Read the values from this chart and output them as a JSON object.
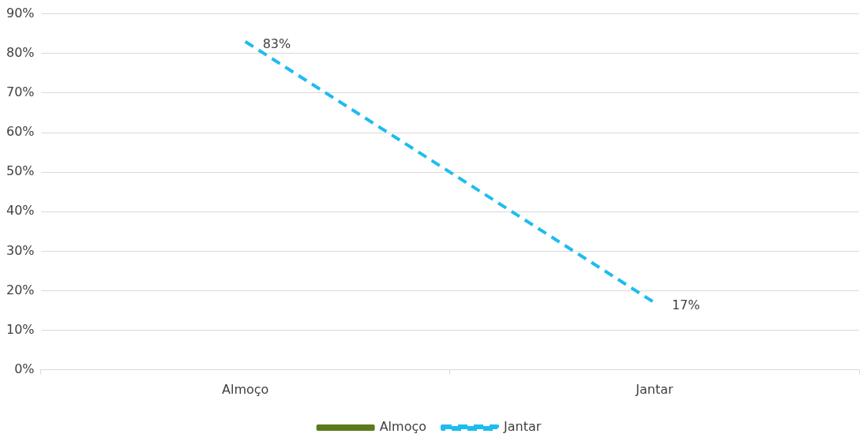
{
  "chart_data": {
    "type": "line",
    "categories": [
      "Almoço",
      "Jantar"
    ],
    "series": [
      {
        "name": "Almoço",
        "color": "#5b7a1a",
        "values": [
          null,
          null
        ],
        "line_style": "solid"
      },
      {
        "name": "Jantar",
        "color": "#1ebcf0",
        "values": [
          83,
          17
        ],
        "line_style": "dashed",
        "value_labels": [
          "83%",
          "17%"
        ]
      }
    ],
    "ylim": [
      0,
      90
    ],
    "yticks": [
      {
        "value": 0,
        "label": "0%"
      },
      {
        "value": 10,
        "label": "10%"
      },
      {
        "value": 20,
        "label": "20%"
      },
      {
        "value": 30,
        "label": "30%"
      },
      {
        "value": 40,
        "label": "40%"
      },
      {
        "value": 50,
        "label": "50%"
      },
      {
        "value": 60,
        "label": "60%"
      },
      {
        "value": 70,
        "label": "70%"
      },
      {
        "value": 80,
        "label": "80%"
      },
      {
        "value": 90,
        "label": "90%"
      }
    ],
    "grid": "y",
    "legend": "bottom",
    "marker": "none"
  }
}
